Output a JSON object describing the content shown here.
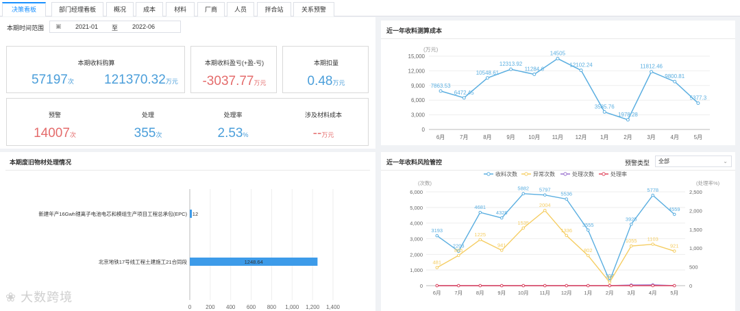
{
  "tabs": [
    "决策看板",
    "部门经理看板",
    "概况",
    "成本",
    "材料",
    "厂商",
    "人员",
    "拌合站",
    "关系预警"
  ],
  "period": {
    "label": "本期时间范围",
    "start": "2021-01",
    "sep": "至",
    "end": "2022-06"
  },
  "summary": {
    "receipt": {
      "label": "本期收料购算",
      "count": "57197",
      "count_unit": "次",
      "amount": "121370.32",
      "amount_unit": "万元"
    },
    "profit": {
      "label": "本期收料盈亏(+盈-亏)",
      "value": "-3037.77",
      "unit": "万元"
    },
    "deduct": {
      "label": "本期扣量",
      "value": "0.48",
      "unit": "万元"
    }
  },
  "alerts": {
    "warn": {
      "label": "预警",
      "value": "14007",
      "unit": "次"
    },
    "handle": {
      "label": "处理",
      "value": "355",
      "unit": "次"
    },
    "rate": {
      "label": "处理率",
      "value": "2.53",
      "unit": "%"
    },
    "cost": {
      "label": "涉及材料成本",
      "value": "--",
      "unit": "万元"
    }
  },
  "waste_panel": {
    "title": "本期废旧物材处理情况"
  },
  "cost_panel": {
    "title": "近一年收料测算成本"
  },
  "risk_panel": {
    "title": "近一年收料风险管控",
    "filter_label": "预警类型",
    "filter_value": "全部"
  },
  "watermark": "大数跨境",
  "chart_data": [
    {
      "type": "line",
      "title": "近一年收料测算成本",
      "ylabel": "(万元)",
      "categories": [
        "6月",
        "7月",
        "8月",
        "9月",
        "10月",
        "11月",
        "12月",
        "1月",
        "2月",
        "3月",
        "4月",
        "5月"
      ],
      "values": [
        7863.53,
        6472.45,
        10548.61,
        12313.92,
        11284.6,
        14505,
        12102.24,
        3585.76,
        1978.28,
        11812.46,
        9800.81,
        5377.3
      ],
      "value_labels": [
        "7863.53",
        "6472.45",
        "10548.61",
        "12313.92",
        "11284.6",
        "14505",
        "12102.24",
        "3585.76",
        "1978.28",
        "11812.46",
        "9800.81",
        "5377.3"
      ],
      "yticks": [
        "0",
        "3,000",
        "6,000",
        "9,000",
        "12,000",
        "15,000"
      ],
      "ylim": [
        0,
        15000
      ],
      "color": "#5aaee0"
    },
    {
      "type": "bar",
      "orientation": "horizontal",
      "title": "本期废旧物材处理情况",
      "categories": [
        "新建年产16Gwh锂离子电池电芯和模组生产项目工程总承包(EPC)",
        "北京地铁17号线工程土建施工21合同段"
      ],
      "values": [
        12,
        1248.64
      ],
      "value_labels": [
        "12",
        "1248.64"
      ],
      "xticks": [
        "0",
        "200",
        "400",
        "600",
        "800",
        "1,000",
        "1,200",
        "1,400"
      ],
      "xlim": [
        0,
        1400
      ],
      "color": "#3d9be9"
    },
    {
      "type": "line",
      "title": "近一年收料风险管控",
      "categories": [
        "6月",
        "7月",
        "8月",
        "9月",
        "10月",
        "11月",
        "12月",
        "1月",
        "2月",
        "3月",
        "4月",
        "5月"
      ],
      "ylabel_left": "(次数)",
      "ylabel_right": "(处理率%)",
      "yticks_left": [
        "0",
        "1,000",
        "2,000",
        "3,000",
        "4,000",
        "5,000",
        "6,000"
      ],
      "yticks_right": [
        "0",
        "500",
        "1,000",
        "1,500",
        "2,000",
        "2,500"
      ],
      "ylim_left": [
        0,
        6000
      ],
      "ylim_right": [
        0,
        2500
      ],
      "legend": [
        "收料次数",
        "异常次数",
        "处理次数",
        "处理率"
      ],
      "series": [
        {
          "name": "收料次数",
          "color": "#5aaee0",
          "values": [
            3193,
            2203,
            4681,
            4328,
            5882,
            5797,
            5536,
            3555,
            307,
            3925,
            5778,
            4559
          ],
          "labels": [
            "3193",
            "2203",
            "4681",
            "4328",
            "5882",
            "5797",
            "5536",
            "3555",
            "307",
            "3925",
            "5778",
            "4559"
          ]
        },
        {
          "name": "异常次数",
          "color": "#f5cd62",
          "values": [
            481,
            805,
            1225,
            941,
            1535,
            2004,
            1336,
            802,
            90,
            1055,
            1103,
            921
          ],
          "labels": [
            "481",
            "805",
            "1225",
            "941",
            "1535",
            "2004",
            "1336",
            "802",
            "90",
            "1055",
            "1103",
            "921"
          ]
        },
        {
          "name": "处理次数",
          "color": "#9b72d0",
          "values": [
            0,
            0,
            0,
            0,
            0,
            0,
            0,
            0,
            0,
            40,
            50,
            0
          ]
        },
        {
          "name": "处理率",
          "color": "#e0455b",
          "values": [
            0,
            0,
            0,
            0,
            0,
            0,
            0,
            0,
            0,
            0,
            0,
            0
          ]
        }
      ]
    }
  ]
}
